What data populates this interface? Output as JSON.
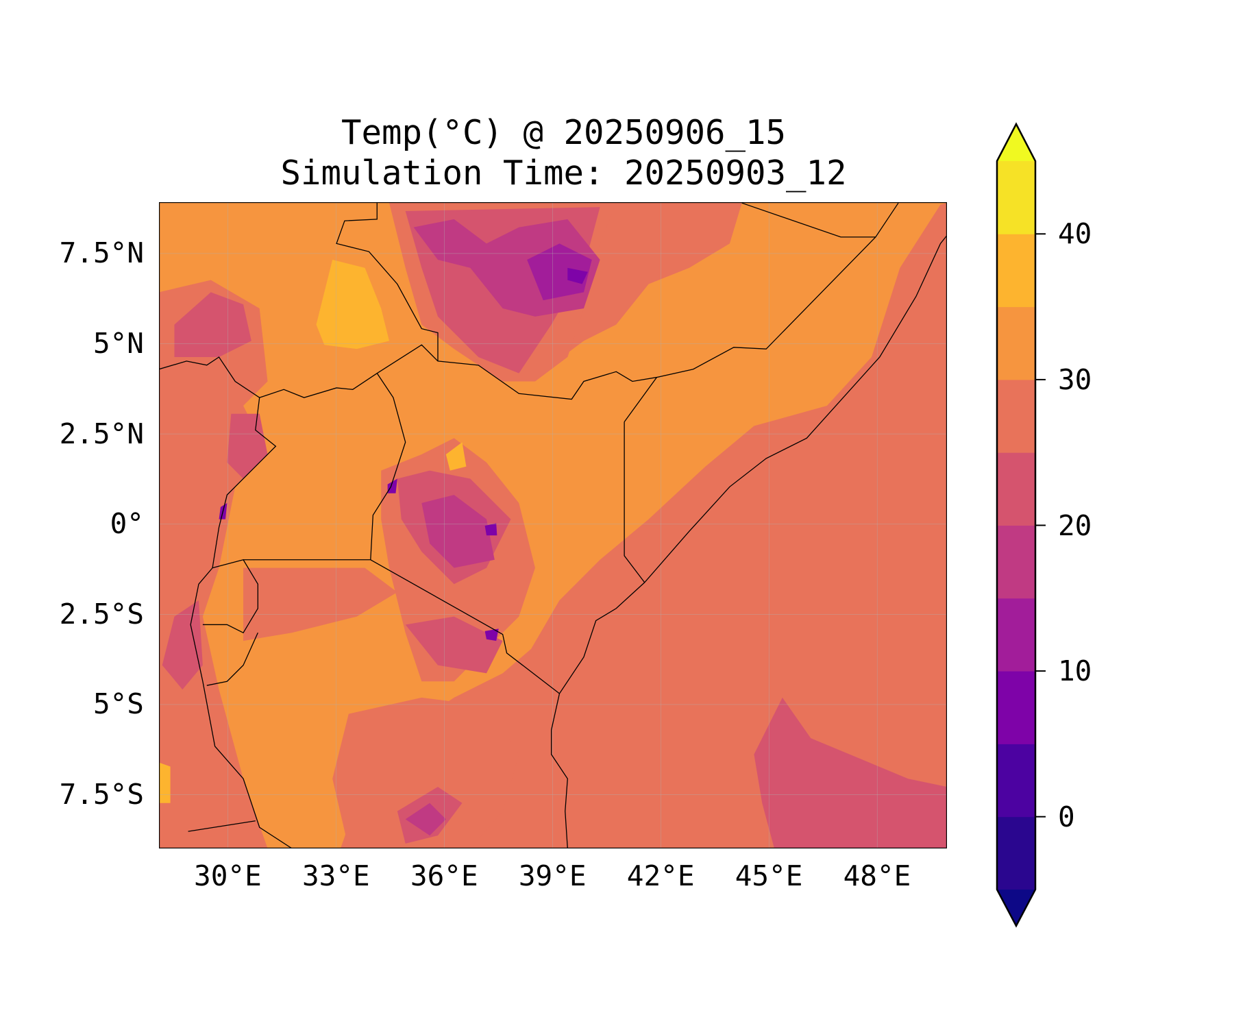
{
  "chart_data": {
    "type": "heatmap",
    "subtype": "filled-contour-map",
    "title": [
      "Temp(°C) @ 20250906_15",
      "Simulation Time: 20250903_12"
    ],
    "variable": "Temp(°C)",
    "xlabel": "",
    "ylabel": "",
    "xlim": [
      28.1,
      49.9
    ],
    "ylim": [
      -9.0,
      8.9
    ],
    "x_ticks": [
      30,
      33,
      36,
      39,
      42,
      45,
      48
    ],
    "x_tick_labels": [
      "30°E",
      "33°E",
      "36°E",
      "39°E",
      "42°E",
      "45°E",
      "48°E"
    ],
    "y_ticks": [
      7.5,
      5,
      2.5,
      0,
      -2.5,
      -5,
      -7.5
    ],
    "y_tick_labels": [
      "7.5°N",
      "5°N",
      "2.5°N",
      "0°",
      "2.5°S",
      "5°S",
      "7.5°S"
    ],
    "grid": true,
    "colorbar": {
      "location": "right",
      "levels": [
        -5,
        0,
        5,
        10,
        15,
        20,
        25,
        30,
        35,
        40,
        45
      ],
      "extend": "both",
      "ticks": [
        0,
        10,
        20,
        30,
        40
      ],
      "tick_labels": [
        "0",
        "10",
        "20",
        "30",
        "40"
      ],
      "colors": [
        "#2a068f",
        "#4c02a1",
        "#7e03a8",
        "#a21d9a",
        "#c03a83",
        "#d5546e",
        "#e8735a",
        "#f6953f",
        "#fdb42f",
        "#f6e226"
      ],
      "under_color": "#0d0887",
      "over_color": "#f0f921"
    },
    "description_regions": {
      "dominant_land_range": [
        30,
        35
      ],
      "ocean_range": [
        25,
        30
      ],
      "highland_min_range": [
        5,
        10
      ]
    }
  }
}
